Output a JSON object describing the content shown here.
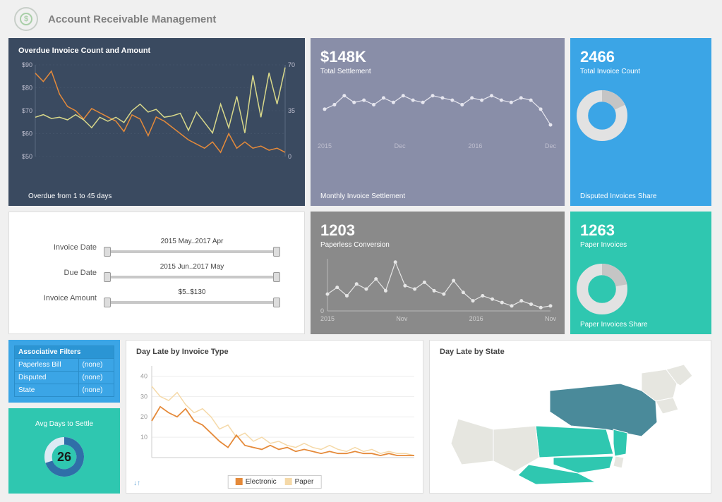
{
  "page": {
    "title": "Account Receivable Management"
  },
  "overdue": {
    "title": "Overdue Invoice Count and Amount",
    "footer": "Overdue from 1 to 45 days",
    "type": "line",
    "background_color": "#3a4a60",
    "y1": {
      "ticks": [
        50,
        60,
        70,
        80,
        90
      ],
      "labels": [
        "$50",
        "$60",
        "$70",
        "$80",
        "$90"
      ],
      "color": "#e58a3a"
    },
    "y2": {
      "ticks": [
        0,
        35,
        70
      ],
      "labels": [
        "0",
        "35",
        "70"
      ],
      "color": "#d6d68a"
    },
    "series1": {
      "color": "#e58a3a",
      "width": 1.5,
      "values": [
        88,
        84,
        89,
        78,
        72,
        70,
        66,
        71,
        69,
        67,
        65,
        60,
        68,
        66,
        58,
        67,
        65,
        62,
        59,
        56,
        54,
        52,
        55,
        50,
        59,
        52,
        55,
        52,
        53,
        51,
        52,
        50
      ]
    },
    "series2": {
      "color": "#d8d88a",
      "width": 1.5,
      "values": [
        30,
        32,
        29,
        30,
        28,
        32,
        28,
        22,
        30,
        27,
        30,
        26,
        35,
        40,
        34,
        36,
        30,
        31,
        33,
        20,
        34,
        26,
        18,
        40,
        22,
        46,
        18,
        62,
        30,
        64,
        40,
        68
      ]
    }
  },
  "settlement": {
    "value": "$148K",
    "label": "Total Settlement",
    "footer": "Monthly Invoice Settlement",
    "type": "line",
    "background_color": "#898ea8",
    "line_color": "#e6e6ef",
    "marker": "circle",
    "x_labels": [
      "2015",
      "Dec",
      "2016",
      "Dec"
    ],
    "values": [
      52,
      54,
      58,
      55,
      56,
      54,
      57,
      55,
      58,
      56,
      55,
      58,
      57,
      56,
      54,
      57,
      56,
      58,
      56,
      55,
      57,
      56,
      52,
      45
    ]
  },
  "invoice_count": {
    "value": "2466",
    "label": "Total Invoice Count",
    "footer": "Disputed Invoices Share",
    "background_color": "#3ba5e6",
    "donut": {
      "ring_color": "#e2e2e2",
      "segment_color": "#c5c5c5",
      "segment_pct": 0.18,
      "inner_ratio": 0.55
    }
  },
  "filters": {
    "rows": [
      {
        "label": "Invoice Date",
        "value": "2015 May..2017 Apr"
      },
      {
        "label": "Due Date",
        "value": "2015 Jun..2017 May"
      },
      {
        "label": "Invoice Amount",
        "value": "$5..$130"
      }
    ]
  },
  "paperless": {
    "value": "1203",
    "label": "Paperless Conversion",
    "type": "line",
    "background_color": "#8a8a8a",
    "line_color": "#e6e6e6",
    "x_labels": [
      "2015",
      "Nov",
      "2016",
      "Nov"
    ],
    "y0_label": "0",
    "values": [
      30,
      38,
      28,
      42,
      36,
      48,
      34,
      68,
      40,
      36,
      44,
      34,
      30,
      46,
      32,
      22,
      28,
      24,
      20,
      16,
      22,
      18,
      14,
      16
    ]
  },
  "paper": {
    "value": "1263",
    "label": "Paper Invoices",
    "footer": "Paper Invoices Share",
    "background_color": "#2fc7b0",
    "donut": {
      "ring_color": "#e2e2e2",
      "segment_color": "#c5c5c5",
      "segment_pct": 0.22,
      "inner_ratio": 0.55
    }
  },
  "assoc": {
    "header": "Associative Filters",
    "rows": [
      {
        "label": "Paperless Bill",
        "value": "(none)"
      },
      {
        "label": "Disputed",
        "value": "(none)"
      },
      {
        "label": "State",
        "value": "(none)"
      }
    ]
  },
  "avg": {
    "title": "Avg Days to Settle",
    "value": "26",
    "ring_color": "#dceaf4",
    "segment_color": "#2f6fa8",
    "segment_pct": 0.7
  },
  "day_late_type": {
    "title": "Day Late by Invoice Type",
    "type": "line",
    "y_ticks": [
      10,
      20,
      30,
      40
    ],
    "legend": [
      {
        "label": "Electronic",
        "color": "#e58a3a"
      },
      {
        "label": "Paper",
        "color": "#f5d9a8"
      }
    ],
    "electronic": {
      "color": "#e58a3a",
      "values": [
        18,
        25,
        22,
        20,
        24,
        18,
        16,
        12,
        8,
        5,
        11,
        6,
        5,
        4,
        6,
        4,
        5,
        3,
        4,
        3,
        2,
        3,
        2,
        2,
        3,
        2,
        2,
        1,
        2,
        1,
        1,
        1
      ]
    },
    "paper": {
      "color": "#f5d9a8",
      "values": [
        35,
        30,
        28,
        32,
        26,
        22,
        24,
        20,
        14,
        16,
        10,
        12,
        8,
        10,
        7,
        8,
        6,
        5,
        7,
        5,
        4,
        6,
        4,
        3,
        5,
        3,
        4,
        2,
        3,
        2,
        2,
        1
      ]
    }
  },
  "day_late_state": {
    "title": "Day Late by State",
    "colors": {
      "base": "#e6e6e0",
      "ny": "#4a8a9a",
      "pa": "#2fc7b0",
      "nj": "#2fc7b0",
      "md": "#2fc7b0",
      "va": "#2fc7b0"
    }
  }
}
